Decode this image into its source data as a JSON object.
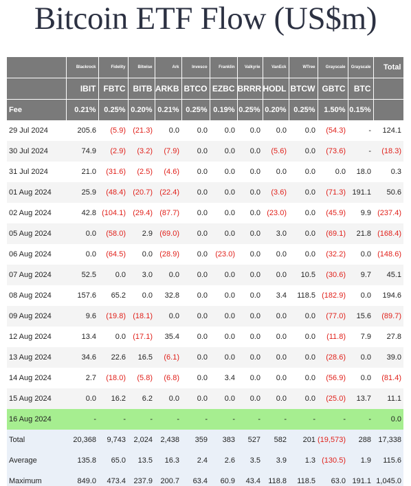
{
  "title": "Bitcoin ETF Flow (US$m)",
  "columns": [
    {
      "issuer": "Blackrock",
      "ticker": "IBIT",
      "fee": "0.21%"
    },
    {
      "issuer": "Fidelity",
      "ticker": "FBTC",
      "fee": "0.25%"
    },
    {
      "issuer": "Bitwise",
      "ticker": "BITB",
      "fee": "0.20%"
    },
    {
      "issuer": "Ark",
      "ticker": "ARKB",
      "fee": "0.21%"
    },
    {
      "issuer": "Invesco",
      "ticker": "BTCO",
      "fee": "0.25%"
    },
    {
      "issuer": "Franklin",
      "ticker": "EZBC",
      "fee": "0.19%"
    },
    {
      "issuer": "Valkyrie",
      "ticker": "BRRR",
      "fee": "0.25%"
    },
    {
      "issuer": "VanEck",
      "ticker": "HODL",
      "fee": "0.20%"
    },
    {
      "issuer": "WTree",
      "ticker": "BTCW",
      "fee": "0.25%"
    },
    {
      "issuer": "Grayscale",
      "ticker": "GBTC",
      "fee": "1.50%"
    },
    {
      "issuer": "Grayscale",
      "ticker": "BTC",
      "fee": "0.15%"
    }
  ],
  "total_label": "Total",
  "fee_label": "Fee",
  "rows": [
    {
      "date": "29 Jul 2024",
      "values": [
        "205.6",
        "(5.9)",
        "(21.3)",
        "0.0",
        "0.0",
        "0.0",
        "0.0",
        "0.0",
        "0.0",
        "(54.3)",
        "-"
      ],
      "total": "124.1"
    },
    {
      "date": "30 Jul 2024",
      "values": [
        "74.9",
        "(2.9)",
        "(3.2)",
        "(7.9)",
        "0.0",
        "0.0",
        "0.0",
        "(5.6)",
        "0.0",
        "(73.6)",
        "-"
      ],
      "total": "(18.3)"
    },
    {
      "date": "31 Jul 2024",
      "values": [
        "21.0",
        "(31.6)",
        "(2.5)",
        "(4.6)",
        "0.0",
        "0.0",
        "0.0",
        "0.0",
        "0.0",
        "0.0",
        "18.0"
      ],
      "total": "0.3"
    },
    {
      "date": "01 Aug 2024",
      "values": [
        "25.9",
        "(48.4)",
        "(20.7)",
        "(22.4)",
        "0.0",
        "0.0",
        "0.0",
        "(3.6)",
        "0.0",
        "(71.3)",
        "191.1"
      ],
      "total": "50.6"
    },
    {
      "date": "02 Aug 2024",
      "values": [
        "42.8",
        "(104.1)",
        "(29.4)",
        "(87.7)",
        "0.0",
        "0.0",
        "0.0",
        "(23.0)",
        "0.0",
        "(45.9)",
        "9.9"
      ],
      "total": "(237.4)"
    },
    {
      "date": "05 Aug 2024",
      "values": [
        "0.0",
        "(58.0)",
        "2.9",
        "(69.0)",
        "0.0",
        "0.0",
        "0.0",
        "3.0",
        "0.0",
        "(69.1)",
        "21.8"
      ],
      "total": "(168.4)"
    },
    {
      "date": "06 Aug 2024",
      "values": [
        "0.0",
        "(64.5)",
        "0.0",
        "(28.9)",
        "0.0",
        "(23.0)",
        "0.0",
        "0.0",
        "0.0",
        "(32.2)",
        "0.0"
      ],
      "total": "(148.6)"
    },
    {
      "date": "07 Aug 2024",
      "values": [
        "52.5",
        "0.0",
        "3.0",
        "0.0",
        "0.0",
        "0.0",
        "0.0",
        "0.0",
        "10.5",
        "(30.6)",
        "9.7"
      ],
      "total": "45.1"
    },
    {
      "date": "08 Aug 2024",
      "values": [
        "157.6",
        "65.2",
        "0.0",
        "32.8",
        "0.0",
        "0.0",
        "0.0",
        "3.4",
        "118.5",
        "(182.9)",
        "0.0"
      ],
      "total": "194.6"
    },
    {
      "date": "09 Aug 2024",
      "values": [
        "9.6",
        "(19.8)",
        "(18.1)",
        "0.0",
        "0.0",
        "0.0",
        "0.0",
        "0.0",
        "0.0",
        "(77.0)",
        "15.6"
      ],
      "total": "(89.7)"
    },
    {
      "date": "12 Aug 2024",
      "values": [
        "13.4",
        "0.0",
        "(17.1)",
        "35.4",
        "0.0",
        "0.0",
        "0.0",
        "0.0",
        "0.0",
        "(11.8)",
        "7.9"
      ],
      "total": "27.8"
    },
    {
      "date": "13 Aug 2024",
      "values": [
        "34.6",
        "22.6",
        "16.5",
        "(6.1)",
        "0.0",
        "0.0",
        "0.0",
        "0.0",
        "0.0",
        "(28.6)",
        "0.0"
      ],
      "total": "39.0"
    },
    {
      "date": "14 Aug 2024",
      "values": [
        "2.7",
        "(18.0)",
        "(5.8)",
        "(6.8)",
        "0.0",
        "3.4",
        "0.0",
        "0.0",
        "0.0",
        "(56.9)",
        "0.0"
      ],
      "total": "(81.4)"
    },
    {
      "date": "15 Aug 2024",
      "values": [
        "0.0",
        "16.2",
        "6.2",
        "0.0",
        "0.0",
        "0.0",
        "0.0",
        "0.0",
        "0.0",
        "(25.0)",
        "13.7"
      ],
      "total": "11.1"
    },
    {
      "date": "16 Aug 2024",
      "values": [
        "-",
        "-",
        "-",
        "-",
        "-",
        "-",
        "-",
        "-",
        "-",
        "-",
        "-"
      ],
      "total": "0.0",
      "highlight": true
    }
  ],
  "summary": [
    {
      "label": "Total",
      "values": [
        "20,368",
        "9,743",
        "2,024",
        "2,438",
        "359",
        "383",
        "527",
        "582",
        "201",
        "(19,573)",
        "288"
      ],
      "total": "17,338"
    },
    {
      "label": "Average",
      "values": [
        "135.8",
        "65.0",
        "13.5",
        "16.3",
        "2.4",
        "2.6",
        "3.5",
        "3.9",
        "1.3",
        "(130.5)",
        "1.9"
      ],
      "total": "115.6"
    },
    {
      "label": "Maximum",
      "values": [
        "849.0",
        "473.4",
        "237.9",
        "200.7",
        "63.4",
        "60.9",
        "43.4",
        "118.8",
        "118.5",
        "63.0",
        "191.1"
      ],
      "total": "1,045.0"
    }
  ],
  "colors": {
    "header_bg": "#7a7a7a",
    "header_text": "#ffffff",
    "negative": "#e0201a",
    "highlight_row": "#a6ee90",
    "alt_row": "#f4f4f4",
    "summary_bg": "#eaf0f8",
    "title": "#2c3142"
  }
}
